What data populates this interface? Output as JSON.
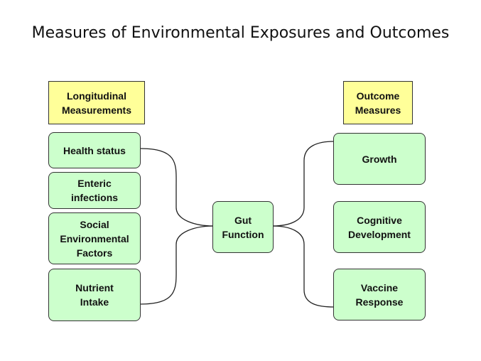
{
  "title": "Measures of Environmental Exposures and Outcomes",
  "headers": {
    "left": "Longitudinal\nMeasurements",
    "right": "Outcome\nMeasures"
  },
  "left_nodes": [
    "Health status",
    "Enteric\ninfections",
    "Social\nEnvironmental\nFactors",
    "Nutrient\nIntake"
  ],
  "center_node": "Gut\nFunction",
  "right_nodes": [
    "Growth",
    "Cognitive\nDevelopment",
    "Vaccine\nResponse"
  ],
  "colors": {
    "header_fill": "#ffff99",
    "node_fill": "#ccffcc",
    "border": "#333333"
  }
}
